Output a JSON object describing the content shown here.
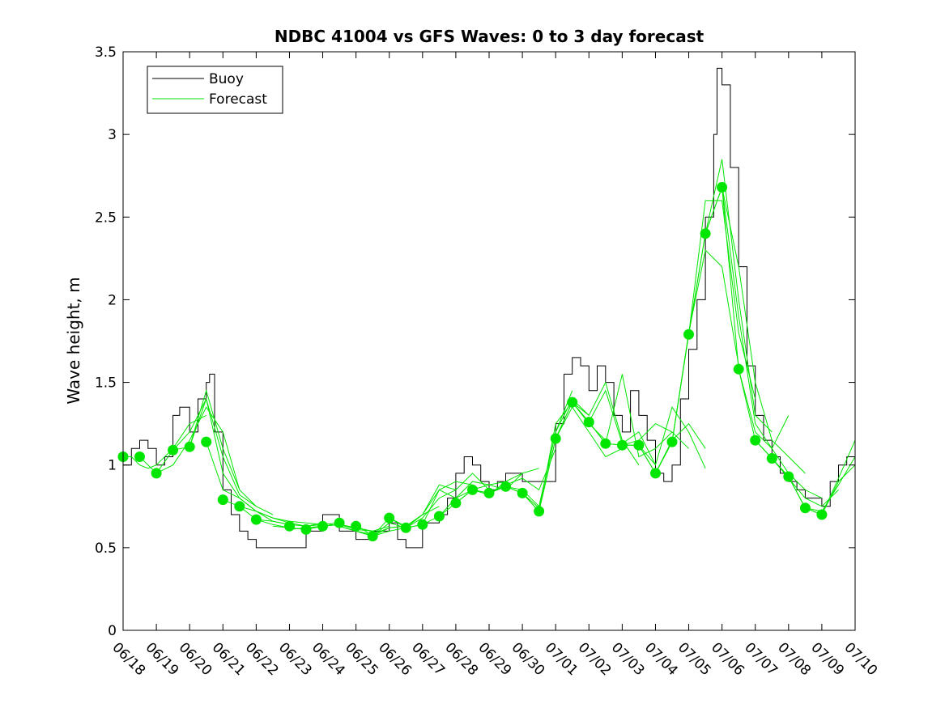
{
  "chart_data": {
    "type": "line",
    "title": "NDBC 41004 vs GFS Waves: 0 to 3 day forecast",
    "xlabel": "",
    "ylabel": "Wave height, m",
    "ylim": [
      0,
      3.5
    ],
    "yticks": [
      "0",
      "0.5",
      "1",
      "1.5",
      "2",
      "2.5",
      "3",
      "3.5"
    ],
    "xlim": [
      0,
      22
    ],
    "xticks": [
      "06/18",
      "06/19",
      "06/20",
      "06/21",
      "06/22",
      "06/23",
      "06/24",
      "06/25",
      "06/26",
      "06/27",
      "06/28",
      "06/29",
      "06/30",
      "07/01",
      "07/02",
      "07/03",
      "07/04",
      "07/05",
      "07/06",
      "07/07",
      "07/08",
      "07/09",
      "07/10"
    ],
    "grid": false,
    "legend_position": "top-left",
    "colors": {
      "buoy": "#000000",
      "forecast": "#00e600"
    },
    "series": [
      {
        "name": "Buoy",
        "x": [
          0,
          0.25,
          0.5,
          0.75,
          1,
          1.25,
          1.5,
          1.7,
          2,
          2.25,
          2.5,
          2.6,
          2.75,
          3,
          3.25,
          3.5,
          3.75,
          4,
          4.5,
          5,
          5.5,
          6,
          6.5,
          7,
          7.5,
          8,
          8.25,
          8.5,
          9,
          9.5,
          9.75,
          10,
          10.25,
          10.5,
          10.75,
          11,
          11.25,
          11.5,
          12,
          12.5,
          13,
          13.25,
          13.5,
          13.75,
          14,
          14.25,
          14.5,
          14.75,
          15,
          15.25,
          15.5,
          15.75,
          16,
          16.25,
          16.5,
          16.75,
          17,
          17.25,
          17.5,
          17.75,
          17.85,
          18,
          18.25,
          18.5,
          18.75,
          19,
          19.25,
          19.5,
          19.75,
          20,
          20.25,
          20.5,
          20.75,
          21,
          21.25,
          21.5,
          21.75,
          22
        ],
        "values": [
          1.0,
          1.1,
          1.15,
          1.1,
          1.0,
          1.05,
          1.3,
          1.35,
          1.2,
          1.4,
          1.5,
          1.55,
          1.2,
          0.85,
          0.7,
          0.6,
          0.55,
          0.5,
          0.5,
          0.5,
          0.6,
          0.7,
          0.6,
          0.55,
          0.6,
          0.65,
          0.55,
          0.5,
          0.65,
          0.7,
          0.8,
          0.95,
          1.05,
          1.0,
          0.9,
          0.85,
          0.9,
          0.95,
          0.9,
          0.9,
          1.25,
          1.55,
          1.65,
          1.6,
          1.45,
          1.6,
          1.5,
          1.3,
          1.2,
          1.45,
          1.3,
          1.15,
          0.95,
          0.9,
          1.0,
          1.4,
          1.7,
          2.0,
          2.5,
          3.0,
          3.4,
          3.3,
          2.8,
          2.2,
          1.6,
          1.3,
          1.15,
          1.05,
          0.95,
          0.9,
          0.85,
          0.8,
          0.8,
          0.75,
          0.9,
          1.0,
          1.05,
          1.1
        ]
      },
      {
        "name": "Forecast",
        "runs": [
          {
            "x": [
              0,
              0.25,
              0.5,
              0.75,
              1,
              1.5,
              2,
              2.5
            ],
            "values": [
              1.05,
              1.05,
              1.0,
              0.98,
              1.0,
              1.1,
              1.25,
              1.3
            ]
          },
          {
            "x": [
              0.5,
              1,
              1.5,
              2,
              2.5,
              3,
              3.5
            ],
            "values": [
              1.05,
              0.95,
              1.0,
              1.15,
              1.35,
              1.2,
              0.85
            ]
          },
          {
            "x": [
              1,
              1.5,
              2,
              2.5,
              3,
              3.5,
              4
            ],
            "values": [
              0.95,
              1.09,
              1.2,
              1.4,
              1.05,
              0.82,
              0.75
            ]
          },
          {
            "x": [
              1.5,
              2,
              2.5,
              3,
              3.5,
              4,
              4.5
            ],
            "values": [
              1.09,
              1.11,
              1.45,
              1.1,
              0.85,
              0.75,
              0.7
            ]
          },
          {
            "x": [
              2,
              2.5,
              3,
              3.5,
              4,
              4.5,
              5
            ],
            "values": [
              1.11,
              1.4,
              0.95,
              0.8,
              0.72,
              0.66,
              0.64
            ]
          },
          {
            "x": [
              2.5,
              3,
              3.5,
              4,
              4.5,
              5,
              5.5
            ],
            "values": [
              1.14,
              0.85,
              0.8,
              0.72,
              0.68,
              0.65,
              0.63
            ]
          },
          {
            "x": [
              3,
              3.5,
              4,
              4.5,
              5,
              5.5,
              6
            ],
            "values": [
              0.79,
              0.75,
              0.72,
              0.68,
              0.66,
              0.65,
              0.64
            ]
          },
          {
            "x": [
              3.5,
              4,
              4.5,
              5,
              5.5,
              6,
              6.5
            ],
            "values": [
              0.75,
              0.67,
              0.66,
              0.64,
              0.63,
              0.64,
              0.65
            ]
          },
          {
            "x": [
              4,
              4.5,
              5,
              5.5,
              6,
              6.5,
              7
            ],
            "values": [
              0.67,
              0.64,
              0.62,
              0.61,
              0.63,
              0.64,
              0.62
            ]
          },
          {
            "x": [
              4.5,
              5,
              5.5,
              6,
              6.5,
              7,
              7.5
            ],
            "values": [
              0.63,
              0.62,
              0.61,
              0.63,
              0.64,
              0.62,
              0.6
            ]
          },
          {
            "x": [
              5,
              5.5,
              6,
              6.5,
              7,
              7.5,
              8
            ],
            "values": [
              0.61,
              0.62,
              0.63,
              0.64,
              0.61,
              0.6,
              0.63
            ]
          },
          {
            "x": [
              5.5,
              6,
              6.5,
              7,
              7.5,
              8,
              8.5
            ],
            "values": [
              0.63,
              0.65,
              0.63,
              0.6,
              0.58,
              0.62,
              0.63
            ]
          },
          {
            "x": [
              6,
              6.5,
              7,
              7.5,
              8,
              8.5,
              9
            ],
            "values": [
              0.65,
              0.63,
              0.6,
              0.57,
              0.6,
              0.62,
              0.64
            ]
          },
          {
            "x": [
              6.5,
              7,
              7.5,
              8,
              8.5,
              9,
              9.5
            ],
            "values": [
              0.63,
              0.6,
              0.57,
              0.62,
              0.63,
              0.7,
              0.75
            ]
          },
          {
            "x": [
              7,
              7.5,
              8,
              8.5,
              9,
              9.5,
              10
            ],
            "values": [
              0.64,
              0.57,
              0.65,
              0.62,
              0.68,
              0.8,
              0.85
            ]
          },
          {
            "x": [
              7.5,
              8,
              8.5,
              9,
              9.5,
              10,
              10.5
            ],
            "values": [
              0.57,
              0.68,
              0.63,
              0.7,
              0.85,
              0.9,
              0.88
            ]
          },
          {
            "x": [
              8,
              8.5,
              9,
              9.5,
              10,
              10.5,
              11
            ],
            "values": [
              0.68,
              0.62,
              0.7,
              0.88,
              0.85,
              0.95,
              0.85
            ]
          },
          {
            "x": [
              8.5,
              9,
              9.5,
              10,
              10.5,
              11,
              11.5
            ],
            "values": [
              0.62,
              0.64,
              0.85,
              0.8,
              0.9,
              0.88,
              0.9
            ]
          },
          {
            "x": [
              9,
              9.5,
              10,
              10.5,
              11,
              11.5,
              12
            ],
            "values": [
              0.64,
              0.69,
              0.8,
              0.85,
              0.88,
              0.85,
              0.95
            ]
          },
          {
            "x": [
              9.5,
              10,
              10.5,
              11,
              11.5,
              12,
              12.5
            ],
            "values": [
              0.69,
              0.77,
              0.85,
              0.82,
              0.9,
              0.95,
              0.98
            ]
          },
          {
            "x": [
              10,
              10.5,
              11,
              11.5,
              12,
              12.5,
              13
            ],
            "values": [
              0.77,
              0.85,
              0.83,
              0.88,
              0.92,
              0.85,
              1.1
            ]
          },
          {
            "x": [
              10.5,
              11,
              11.5,
              12,
              12.5,
              13,
              13.5
            ],
            "values": [
              0.85,
              0.83,
              0.87,
              0.85,
              0.75,
              1.2,
              1.45
            ]
          },
          {
            "x": [
              11,
              11.5,
              12,
              12.5,
              13,
              13.5,
              14
            ],
            "values": [
              0.83,
              0.87,
              0.83,
              0.74,
              1.2,
              1.4,
              1.3
            ]
          },
          {
            "x": [
              11.5,
              12,
              12.5,
              13,
              13.5,
              14,
              14.5
            ],
            "values": [
              0.87,
              0.83,
              0.72,
              1.25,
              1.38,
              1.25,
              1.15
            ]
          },
          {
            "x": [
              12,
              12.5,
              13,
              13.5,
              14,
              14.5,
              15
            ],
            "values": [
              0.83,
              0.72,
              1.16,
              1.35,
              1.2,
              1.05,
              1.1
            ]
          },
          {
            "x": [
              12.5,
              13,
              13.5,
              14,
              14.5,
              15,
              15.5
            ],
            "values": [
              0.72,
              1.16,
              1.38,
              1.3,
              1.5,
              1.15,
              1.0
            ]
          },
          {
            "x": [
              13,
              13.5,
              14,
              14.5,
              15,
              15.5,
              16
            ],
            "values": [
              1.16,
              1.38,
              1.26,
              1.45,
              1.13,
              1.2,
              1.0
            ]
          },
          {
            "x": [
              13.5,
              14,
              14.5,
              15,
              15.5,
              16,
              16.5
            ],
            "values": [
              1.38,
              1.26,
              1.13,
              1.55,
              1.05,
              1.1,
              1.2
            ]
          },
          {
            "x": [
              14,
              14.5,
              15,
              15.5,
              16,
              16.5,
              17
            ],
            "values": [
              1.26,
              1.13,
              1.12,
              1.15,
              1.25,
              1.2,
              1.1
            ]
          },
          {
            "x": [
              14.5,
              15,
              15.5,
              16,
              16.5,
              17,
              17.5
            ],
            "values": [
              1.13,
              1.12,
              1.12,
              1.0,
              1.35,
              1.2,
              0.98
            ]
          },
          {
            "x": [
              15,
              15.5,
              16,
              16.5,
              17,
              17.5
            ],
            "values": [
              1.12,
              1.12,
              0.95,
              1.15,
              1.25,
              1.1
            ]
          },
          {
            "x": [
              15.5,
              16,
              16.5,
              17,
              17.5,
              18,
              18.5
            ],
            "values": [
              1.12,
              0.95,
              1.14,
              1.8,
              2.3,
              2.2,
              1.6
            ]
          },
          {
            "x": [
              16,
              16.5,
              17,
              17.5,
              18,
              18.5,
              19
            ],
            "values": [
              0.95,
              1.14,
              1.79,
              2.6,
              2.6,
              1.8,
              1.4
            ]
          },
          {
            "x": [
              16.5,
              17,
              17.5,
              18,
              18.5,
              19,
              19.5
            ],
            "values": [
              1.14,
              1.79,
              2.4,
              2.85,
              2.0,
              1.3,
              1.2
            ]
          },
          {
            "x": [
              17,
              17.5,
              18,
              18.5,
              19,
              19.5,
              20
            ],
            "values": [
              1.79,
              2.4,
              2.68,
              1.9,
              1.25,
              1.1,
              1.3
            ]
          },
          {
            "x": [
              17.5,
              18,
              18.5,
              19,
              19.5,
              20,
              20.5
            ],
            "values": [
              2.4,
              2.68,
              2.2,
              1.5,
              1.15,
              1.05,
              0.95
            ]
          },
          {
            "x": [
              18,
              18.5,
              19,
              19.5,
              20,
              20.5,
              21
            ],
            "values": [
              2.68,
              1.58,
              1.2,
              1.1,
              0.95,
              0.85,
              0.8
            ]
          },
          {
            "x": [
              18.5,
              19,
              19.5,
              20,
              20.5,
              21,
              21.5
            ],
            "values": [
              1.58,
              1.15,
              1.04,
              0.92,
              0.8,
              0.75,
              0.85
            ]
          },
          {
            "x": [
              19,
              19.5,
              20,
              20.5,
              21,
              21.5,
              22
            ],
            "values": [
              1.15,
              1.04,
              0.93,
              0.74,
              0.72,
              0.88,
              1.05
            ]
          },
          {
            "x": [
              19.5,
              20,
              20.5,
              21,
              21.5,
              22
            ],
            "values": [
              1.04,
              0.93,
              0.74,
              0.7,
              0.92,
              1.15
            ]
          },
          {
            "x": [
              20,
              20.5,
              21,
              21.5,
              22
            ],
            "values": [
              0.93,
              0.74,
              0.7,
              0.9,
              1.0
            ]
          }
        ],
        "analysis_points": {
          "x": [
            0,
            0.5,
            1,
            1.5,
            2,
            2.5,
            3,
            3.5,
            4,
            5,
            5.5,
            6,
            6.5,
            7,
            7.5,
            8,
            8.5,
            9,
            9.5,
            10,
            10.5,
            11,
            11.5,
            12,
            12.5,
            13,
            13.5,
            14,
            14.5,
            15,
            15.5,
            16,
            16.5,
            17,
            17.5,
            18,
            18.5,
            19,
            19.5,
            20,
            20.5,
            21
          ],
          "values": [
            1.05,
            1.05,
            0.95,
            1.09,
            1.11,
            1.14,
            0.79,
            0.75,
            0.67,
            0.63,
            0.61,
            0.63,
            0.65,
            0.63,
            0.57,
            0.68,
            0.62,
            0.64,
            0.69,
            0.77,
            0.85,
            0.83,
            0.87,
            0.83,
            0.72,
            1.16,
            1.38,
            1.26,
            1.13,
            1.12,
            1.12,
            0.95,
            1.14,
            1.79,
            2.4,
            2.68,
            1.58,
            1.15,
            1.04,
            0.93,
            0.74,
            0.7
          ]
        }
      }
    ]
  }
}
